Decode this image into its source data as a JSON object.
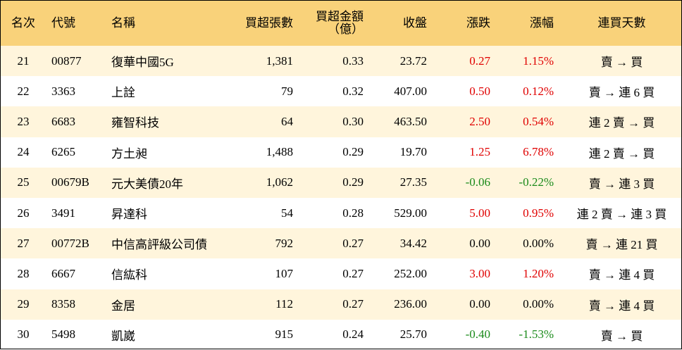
{
  "table": {
    "header": [
      "名次",
      "代號",
      "名稱",
      "買超張數",
      "買超金額\n（億）",
      "收盤",
      "漲跌",
      "漲幅",
      "連買天數"
    ],
    "rows": [
      [
        "21",
        "00877",
        "復華中國5G",
        "1,381",
        "0.33",
        "23.72",
        "0.27",
        "1.15%",
        "賣 → 買"
      ],
      [
        "22",
        "3363",
        "上詮",
        "79",
        "0.32",
        "407.00",
        "0.50",
        "0.12%",
        "賣 → 連 6 買"
      ],
      [
        "23",
        "6683",
        "雍智科技",
        "64",
        "0.30",
        "463.50",
        "2.50",
        "0.54%",
        "連 2 賣 → 買"
      ],
      [
        "24",
        "6265",
        "方土昶",
        "1,488",
        "0.29",
        "19.70",
        "1.25",
        "6.78%",
        "連 2 賣 → 買"
      ],
      [
        "25",
        "00679B",
        "元大美債20年",
        "1,062",
        "0.29",
        "27.35",
        "-0.06",
        "-0.22%",
        "賣 → 連 3 買"
      ],
      [
        "26",
        "3491",
        "昇達科",
        "54",
        "0.28",
        "529.00",
        "5.00",
        "0.95%",
        "連 2 賣 → 連 3 買"
      ],
      [
        "27",
        "00772B",
        "中信高評級公司債",
        "792",
        "0.27",
        "34.42",
        "0.00",
        "0.00%",
        "賣 → 連 21 買"
      ],
      [
        "28",
        "6667",
        "信紘科",
        "107",
        "0.27",
        "252.00",
        "3.00",
        "1.20%",
        "賣 → 連 4 買"
      ],
      [
        "29",
        "8358",
        "金居",
        "112",
        "0.27",
        "236.00",
        "0.00",
        "0.00%",
        "賣 → 連 4 買"
      ],
      [
        "30",
        "5498",
        "凱崴",
        "915",
        "0.24",
        "25.70",
        "-0.40",
        "-1.53%",
        "賣 → 買"
      ]
    ],
    "up_color": "#e00000",
    "down_color": "#1a8a1a",
    "flat_color": "#000000"
  }
}
